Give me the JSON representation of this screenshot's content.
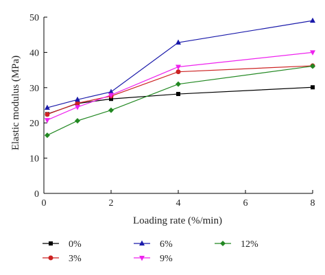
{
  "chart_data": {
    "type": "line",
    "xlabel": "Loading rate (%/min)",
    "ylabel": "Elastic modulus (MPa)",
    "xlim": [
      0,
      8
    ],
    "ylim": [
      0,
      50
    ],
    "xticks": [
      "0",
      "2",
      "4",
      "6",
      "8"
    ],
    "yticks": [
      "0",
      "10",
      "20",
      "30",
      "40",
      "50"
    ],
    "grid": false,
    "legend_position": "bottom",
    "series": [
      {
        "name": "0%",
        "color": "#000000",
        "marker": "square",
        "x": [
          0.1,
          1,
          2,
          4,
          8
        ],
        "y": [
          22.5,
          25.5,
          26.8,
          28.2,
          30.1
        ]
      },
      {
        "name": "3%",
        "color": "#cc2222",
        "marker": "circle",
        "x": [
          0.1,
          1,
          2,
          4,
          8
        ],
        "y": [
          22.4,
          25.6,
          27.6,
          34.5,
          36.2
        ]
      },
      {
        "name": "6%",
        "color": "#1a1aaa",
        "marker": "triangle-up",
        "x": [
          0.1,
          1,
          2,
          4,
          8
        ],
        "y": [
          24.3,
          26.6,
          28.8,
          42.8,
          49.0
        ]
      },
      {
        "name": "9%",
        "color": "#ee22ee",
        "marker": "triangle-down",
        "x": [
          0.1,
          1,
          2,
          4,
          8
        ],
        "y": [
          20.8,
          24.5,
          27.9,
          35.9,
          40.0
        ]
      },
      {
        "name": "12%",
        "color": "#228822",
        "marker": "diamond",
        "x": [
          0.1,
          1,
          2,
          4,
          8
        ],
        "y": [
          16.5,
          20.6,
          23.6,
          31.0,
          36.1
        ]
      }
    ]
  }
}
